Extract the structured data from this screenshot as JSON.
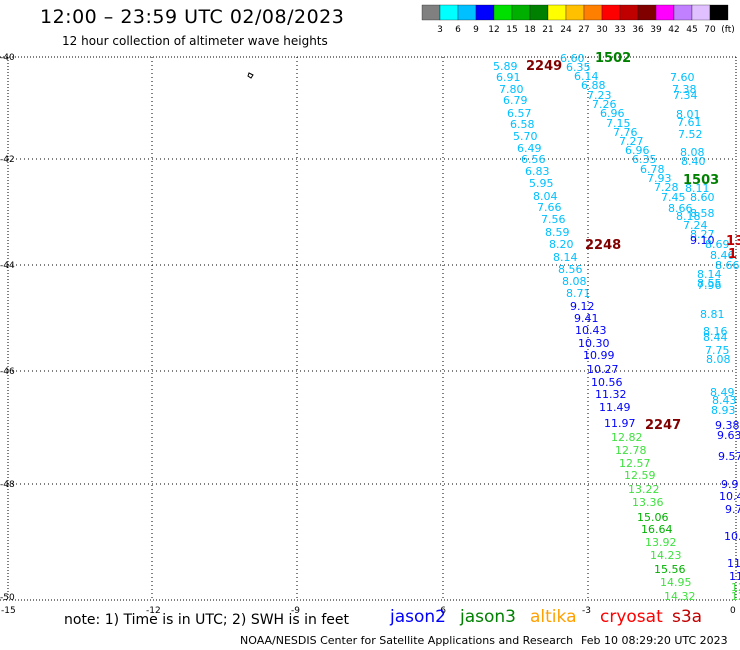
{
  "header": {
    "title": "12:00 – 23:59 UTC 02/08/2023",
    "subtitle": "12 hour collection of altimeter wave heights"
  },
  "legend": {
    "colors": [
      "#808080",
      "#00ffff",
      "#00c0ff",
      "#0000ff",
      "#00e000",
      "#00b000",
      "#008000",
      "#ffff00",
      "#ffc000",
      "#ff8000",
      "#ff0000",
      "#c00000",
      "#800000",
      "#ff00ff",
      "#c080ff",
      "#e0c0ff",
      "#000000"
    ],
    "labels": [
      "3",
      "6",
      "9",
      "12",
      "15",
      "18",
      "21",
      "24",
      "27",
      "30",
      "33",
      "36",
      "39",
      "42",
      "45",
      "70",
      "(ft)"
    ]
  },
  "axes": {
    "lat_labels": [
      "-40",
      "-42",
      "-44",
      "-46",
      "-48",
      "-50"
    ],
    "lon_labels": [
      "-15",
      "-12",
      "-9",
      "-6",
      "-3",
      "0"
    ]
  },
  "passes": [
    {
      "label": "2249",
      "color": "#800000"
    },
    {
      "label": "1502",
      "color": "#008000"
    },
    {
      "label": "1503",
      "color": "#008000"
    },
    {
      "label": "2248",
      "color": "#800000"
    },
    {
      "label": "2247",
      "color": "#800000"
    },
    {
      "label": "13",
      "color": "#c00000"
    },
    {
      "label": "1",
      "color": "#c00000"
    }
  ],
  "obs": [
    [
      "5.89",
      "#00c0ff"
    ],
    [
      "6.91",
      "#00c0ff"
    ],
    [
      "7.80",
      "#00c0ff"
    ],
    [
      "6.79",
      "#00c0ff"
    ],
    [
      "6.57",
      "#00c0ff"
    ],
    [
      "6.58",
      "#00c0ff"
    ],
    [
      "5.70",
      "#00c0ff"
    ],
    [
      "6.49",
      "#00c0ff"
    ],
    [
      "6.56",
      "#00c0ff"
    ],
    [
      "6.83",
      "#00c0ff"
    ],
    [
      "5.95",
      "#00c0ff"
    ],
    [
      "8.04",
      "#00c0ff"
    ],
    [
      "7.66",
      "#00c0ff"
    ],
    [
      "7.56",
      "#00c0ff"
    ],
    [
      "8.59",
      "#00c0ff"
    ],
    [
      "8.20",
      "#00c0ff"
    ],
    [
      "8.14",
      "#00c0ff"
    ],
    [
      "8.56",
      "#00c0ff"
    ],
    [
      "8.08",
      "#00c0ff"
    ],
    [
      "8.71",
      "#00c0ff"
    ],
    [
      "9.12",
      "#0000ff"
    ],
    [
      "9.41",
      "#0000ff"
    ],
    [
      "10.43",
      "#0000ff"
    ],
    [
      "10.30",
      "#0000ff"
    ],
    [
      "10.99",
      "#0000ff"
    ],
    [
      "10.27",
      "#0000ff"
    ],
    [
      "10.56",
      "#0000ff"
    ],
    [
      "11.32",
      "#0000ff"
    ],
    [
      "11.49",
      "#0000ff"
    ],
    [
      "11.97",
      "#0000ff"
    ],
    [
      "12.82",
      "#40e040"
    ],
    [
      "12.78",
      "#40e040"
    ],
    [
      "12.57",
      "#40e040"
    ],
    [
      "12.59",
      "#40e040"
    ],
    [
      "13.22",
      "#40e040"
    ],
    [
      "13.36",
      "#40e040"
    ],
    [
      "15.06",
      "#00b000"
    ],
    [
      "16.64",
      "#00b000"
    ],
    [
      "13.92",
      "#40e040"
    ],
    [
      "14.23",
      "#40e040"
    ],
    [
      "15.56",
      "#00b000"
    ],
    [
      "14.95",
      "#40e040"
    ],
    [
      "14.32",
      "#40e040"
    ],
    [
      "6.60",
      "#00c0ff"
    ],
    [
      "6.35",
      "#00c0ff"
    ],
    [
      "6.14",
      "#00c0ff"
    ],
    [
      "6.88",
      "#00c0ff"
    ],
    [
      "7.23",
      "#00c0ff"
    ],
    [
      "7.26",
      "#00c0ff"
    ],
    [
      "6.96",
      "#00c0ff"
    ],
    [
      "7.15",
      "#00c0ff"
    ],
    [
      "7.76",
      "#00c0ff"
    ],
    [
      "7.27",
      "#00c0ff"
    ],
    [
      "6.96",
      "#00c0ff"
    ],
    [
      "6.35",
      "#00c0ff"
    ],
    [
      "6.78",
      "#00c0ff"
    ],
    [
      "7.93",
      "#00c0ff"
    ],
    [
      "7.28",
      "#00c0ff"
    ],
    [
      "7.45",
      "#00c0ff"
    ],
    [
      "8.66",
      "#00c0ff"
    ],
    [
      "8.18",
      "#00c0ff"
    ],
    [
      "7.60",
      "#00c0ff"
    ],
    [
      "7.38",
      "#00c0ff"
    ],
    [
      "7.34",
      "#00c0ff"
    ],
    [
      "8.01",
      "#00c0ff"
    ],
    [
      "7.61",
      "#00c0ff"
    ],
    [
      "7.52",
      "#00c0ff"
    ],
    [
      "8.08",
      "#00c0ff"
    ],
    [
      "8.40",
      "#00c0ff"
    ],
    [
      "8.11",
      "#00c0ff"
    ],
    [
      "8.60",
      "#00c0ff"
    ],
    [
      "8.58",
      "#00c0ff"
    ],
    [
      "7.24",
      "#00c0ff"
    ],
    [
      "8.27",
      "#00c0ff"
    ],
    [
      "9.10",
      "#0000ff"
    ],
    [
      "8.69",
      "#00c0ff"
    ],
    [
      "8.46",
      "#00c0ff"
    ],
    [
      "8.66",
      "#00c0ff"
    ],
    [
      "8.14",
      "#00c0ff"
    ],
    [
      "8.55",
      "#00c0ff"
    ],
    [
      "7.96",
      "#00c0ff"
    ],
    [
      "8.81",
      "#00c0ff"
    ],
    [
      "8.16",
      "#00c0ff"
    ],
    [
      "8.44",
      "#00c0ff"
    ],
    [
      "7.75",
      "#00c0ff"
    ],
    [
      "8.08",
      "#00c0ff"
    ],
    [
      "8.49",
      "#00c0ff"
    ],
    [
      "8.43",
      "#00c0ff"
    ],
    [
      "8.93",
      "#00c0ff"
    ],
    [
      "9.38",
      "#0000ff"
    ],
    [
      "9.63",
      "#0000ff"
    ],
    [
      "9.57",
      "#0000ff"
    ],
    [
      "9.9",
      "#0000ff"
    ],
    [
      "10.4",
      "#0000ff"
    ],
    [
      "9.7",
      "#0000ff"
    ],
    [
      "10.",
      "#0000ff"
    ],
    [
      "11",
      "#0000ff"
    ],
    [
      "11",
      "#0000ff"
    ],
    [
      "12",
      "#40e040"
    ],
    [
      "12",
      "#40e040"
    ]
  ],
  "footer": {
    "note": "note:  1) Time is in UTC;  2) SWH is in feet",
    "satellites": [
      {
        "name": "jason2",
        "color": "#0000ff"
      },
      {
        "name": "jason3",
        "color": "#008000"
      },
      {
        "name": "altika",
        "color": "#ffa000"
      },
      {
        "name": "cryosat",
        "color": "#ff0000"
      },
      {
        "name": "s3a",
        "color": "#c00000"
      }
    ],
    "credit": "NOAA/NESDIS Center for Satellite Applications and Research",
    "timestamp": "Feb 10 08:29:20 UTC 2023"
  }
}
